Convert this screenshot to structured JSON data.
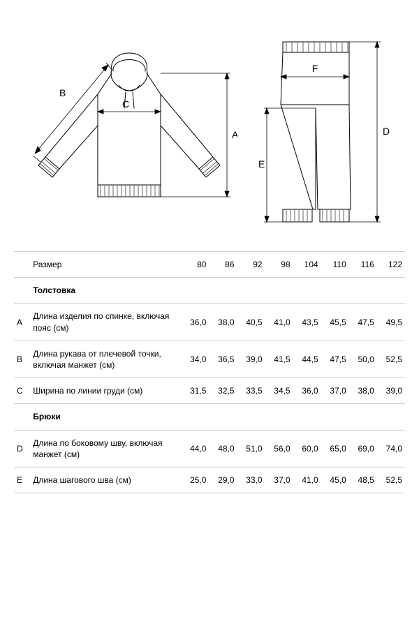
{
  "colors": {
    "stroke": "#000000",
    "dim_stroke": "#000000",
    "table_border": "#cccccc",
    "background": "#ffffff",
    "text": "#000000"
  },
  "diagram": {
    "hoodie": {
      "labels": {
        "A": "A",
        "B": "B",
        "C": "C"
      }
    },
    "pants": {
      "labels": {
        "D": "D",
        "E": "E",
        "F": "F"
      }
    },
    "line_width": 1,
    "dim_line_width": 0.8
  },
  "table": {
    "header_label": "Размер",
    "sizes": [
      "80",
      "86",
      "92",
      "98",
      "104",
      "110",
      "116",
      "122"
    ],
    "sections": [
      {
        "title": "Толстовка",
        "rows": [
          {
            "letter": "A",
            "desc": "Длина изделия по спинке, включая пояс (см)",
            "values": [
              "36,0",
              "38,0",
              "40,5",
              "41,0",
              "43,5",
              "45,5",
              "47,5",
              "49,5"
            ]
          },
          {
            "letter": "B",
            "desc": "Длина рукава от плечевой точки,\nвключая манжет (см)",
            "values": [
              "34,0",
              "36,5",
              "39,0",
              "41,5",
              "44,5",
              "47,5",
              "50,0",
              "52,5"
            ]
          },
          {
            "letter": "C",
            "desc": "Ширина по линии груди (см)",
            "values": [
              "31,5",
              "32,5",
              "33,5",
              "34,5",
              "36,0",
              "37,0",
              "38,0",
              "39,0"
            ]
          }
        ]
      },
      {
        "title": "Брюки",
        "rows": [
          {
            "letter": "D",
            "desc": "Длина по боковому шву, включая манжет (см)",
            "values": [
              "44,0",
              "48,0",
              "51,0",
              "56,0",
              "60,0",
              "65,0",
              "69,0",
              "74,0"
            ]
          },
          {
            "letter": "E",
            "desc": "Длина шагового шва (см)",
            "values": [
              "25,0",
              "29,0",
              "33,0",
              "37,0",
              "41,0",
              "45,0",
              "48,5",
              "52,5"
            ]
          }
        ]
      }
    ]
  }
}
